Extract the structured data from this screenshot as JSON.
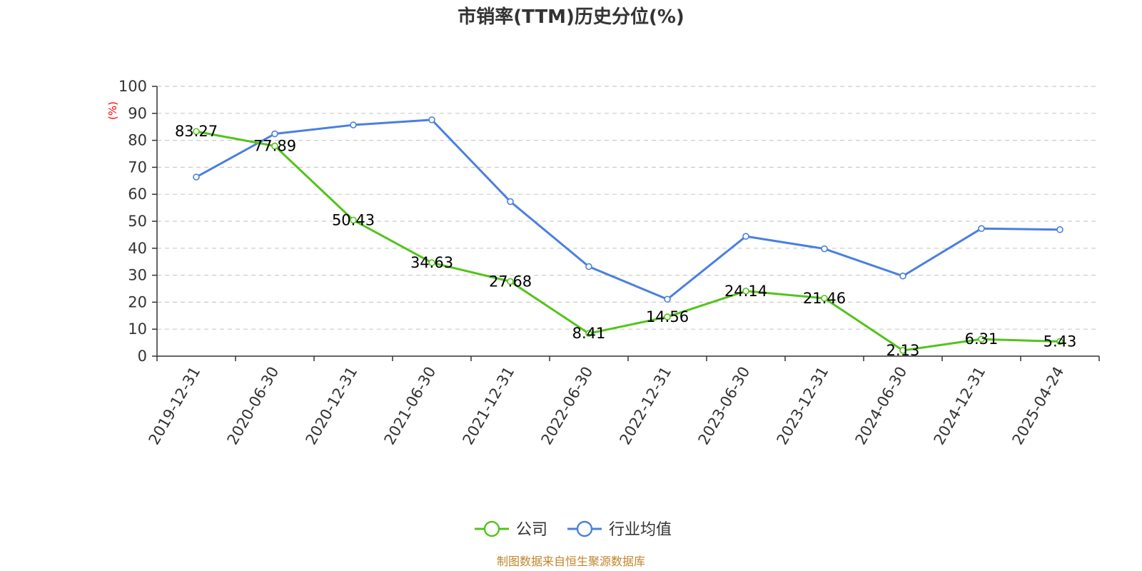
{
  "chart_data": {
    "type": "line",
    "title": "市销率(TTM)历史分位(%)",
    "y_unit": "(%)",
    "categories": [
      "2019-12-31",
      "2020-06-30",
      "2020-12-31",
      "2021-06-30",
      "2021-12-31",
      "2022-06-30",
      "2022-12-31",
      "2023-06-30",
      "2023-12-31",
      "2024-06-30",
      "2024-12-31",
      "2025-04-24"
    ],
    "ylim": [
      0,
      100
    ],
    "yticks": [
      0,
      10,
      20,
      30,
      40,
      50,
      60,
      70,
      80,
      90,
      100
    ],
    "grid": true,
    "legend_position": "bottom-center",
    "series": [
      {
        "name": "公司",
        "color": "#52c41a",
        "show_labels": true,
        "values": [
          83.27,
          77.89,
          50.43,
          34.63,
          27.68,
          8.41,
          14.56,
          24.14,
          21.46,
          2.13,
          6.31,
          5.43
        ]
      },
      {
        "name": "行业均值",
        "color": "#4a7fe0",
        "show_labels": false,
        "values": [
          66.4,
          82.4,
          85.7,
          87.6,
          57.3,
          33.2,
          21.1,
          44.4,
          39.8,
          29.7,
          47.3,
          46.9
        ]
      }
    ]
  },
  "source_text": "制图数据来自恒生聚源数据库"
}
